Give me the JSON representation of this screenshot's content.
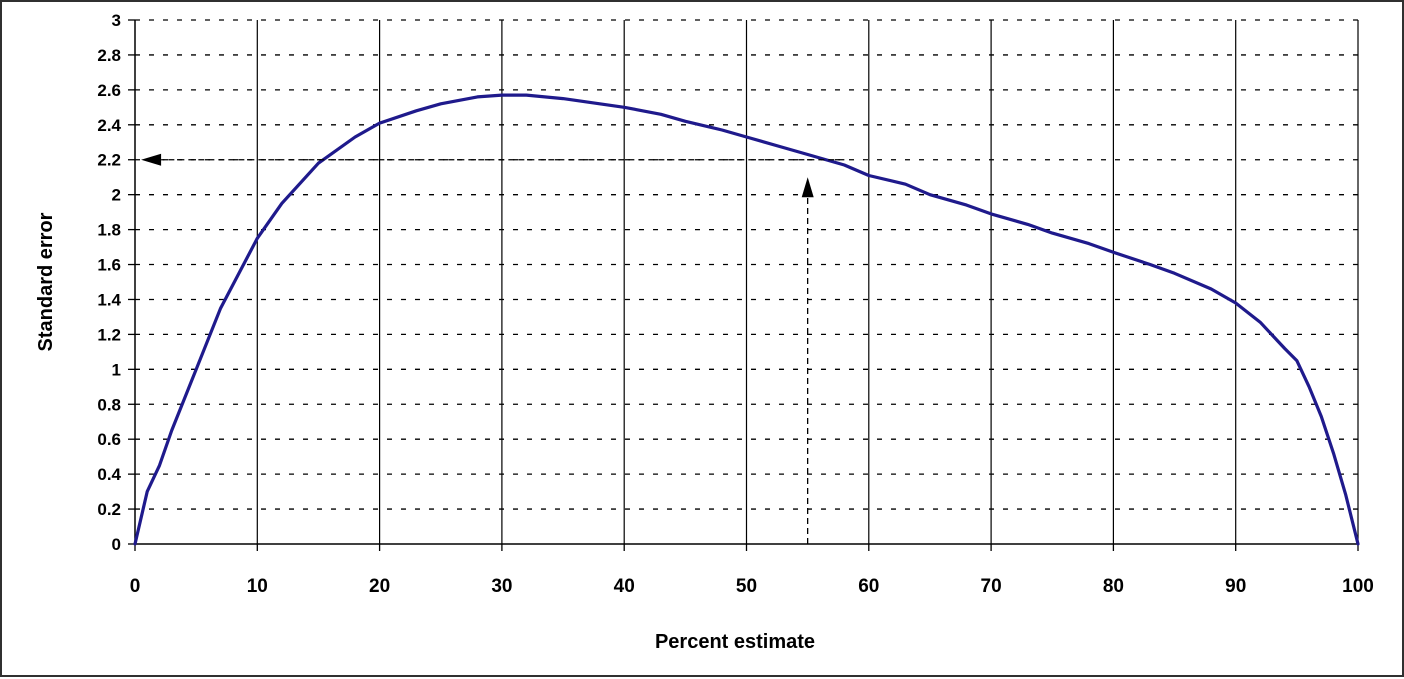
{
  "chart_data": {
    "type": "line",
    "title": "",
    "xlabel": "Percent estimate",
    "ylabel": "Standard error",
    "xlim": [
      0,
      100
    ],
    "ylim": [
      0,
      3
    ],
    "x_ticks": [
      0,
      10,
      20,
      30,
      40,
      50,
      60,
      70,
      80,
      90,
      100
    ],
    "y_ticks": [
      0,
      0.2,
      0.4,
      0.6,
      0.8,
      1,
      1.2,
      1.4,
      1.6,
      1.8,
      2,
      2.2,
      2.4,
      2.6,
      2.8,
      3
    ],
    "grid": {
      "vertical": "solid",
      "horizontal": "dashed"
    },
    "legend": "none",
    "series": [
      {
        "color": "#1f1a8c",
        "points": [
          [
            0,
            0
          ],
          [
            1,
            0.3
          ],
          [
            2,
            0.45
          ],
          [
            3,
            0.65
          ],
          [
            5,
            1.0
          ],
          [
            7,
            1.35
          ],
          [
            10,
            1.75
          ],
          [
            12,
            1.95
          ],
          [
            15,
            2.18
          ],
          [
            18,
            2.33
          ],
          [
            20,
            2.41
          ],
          [
            23,
            2.48
          ],
          [
            25,
            2.52
          ],
          [
            28,
            2.56
          ],
          [
            30,
            2.57
          ],
          [
            32,
            2.57
          ],
          [
            35,
            2.55
          ],
          [
            38,
            2.52
          ],
          [
            40,
            2.5
          ],
          [
            43,
            2.46
          ],
          [
            45,
            2.42
          ],
          [
            48,
            2.37
          ],
          [
            50,
            2.33
          ],
          [
            53,
            2.27
          ],
          [
            55,
            2.23
          ],
          [
            58,
            2.17
          ],
          [
            60,
            2.11
          ],
          [
            63,
            2.06
          ],
          [
            65,
            2.0
          ],
          [
            68,
            1.94
          ],
          [
            70,
            1.89
          ],
          [
            73,
            1.83
          ],
          [
            75,
            1.78
          ],
          [
            78,
            1.72
          ],
          [
            80,
            1.67
          ],
          [
            83,
            1.6
          ],
          [
            85,
            1.55
          ],
          [
            88,
            1.46
          ],
          [
            90,
            1.38
          ],
          [
            92,
            1.27
          ],
          [
            94,
            1.12
          ],
          [
            95,
            1.05
          ],
          [
            96,
            0.9
          ],
          [
            97,
            0.73
          ],
          [
            98,
            0.52
          ],
          [
            99,
            0.28
          ],
          [
            100,
            0
          ]
        ]
      }
    ],
    "annotations": [
      {
        "type": "dashed-arrow",
        "description": "vertical guide from x-axis up to curve",
        "from": [
          55,
          0
        ],
        "to": [
          55,
          2.1
        ]
      },
      {
        "type": "dashed-arrow",
        "description": "horizontal guide from curve to y-axis",
        "from": [
          58,
          2.2
        ],
        "to": [
          0.5,
          2.2
        ]
      }
    ]
  }
}
